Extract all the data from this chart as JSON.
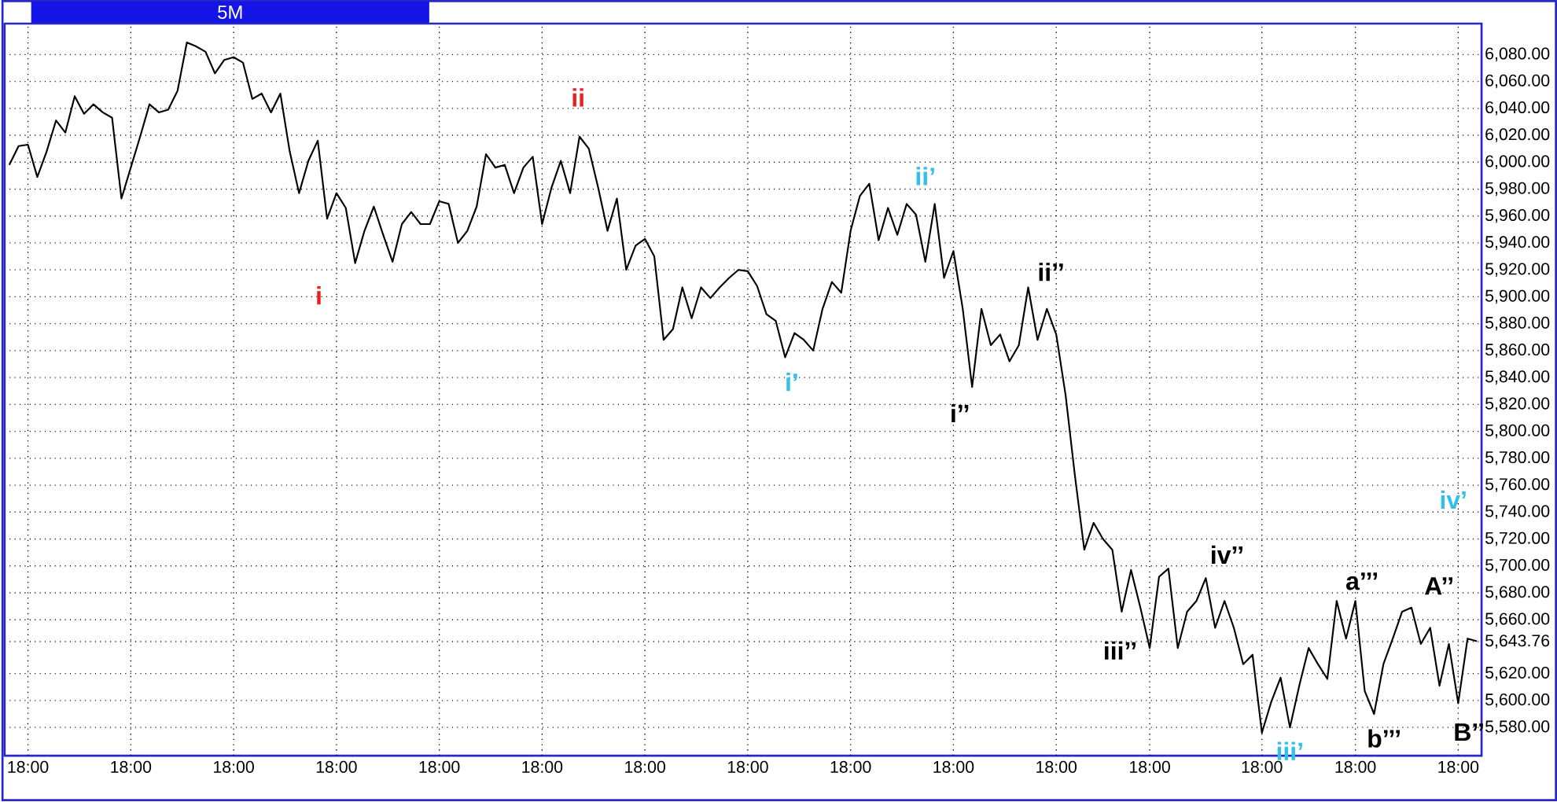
{
  "chart_data": {
    "type": "line",
    "title": "5M",
    "categories": [
      null,
      null,
      "18:00",
      null,
      null,
      null,
      null,
      null,
      null,
      null,
      null,
      null,
      null,
      "18:00",
      null,
      null,
      null,
      null,
      null,
      null,
      null,
      null,
      null,
      null,
      "18:00",
      null,
      null,
      null,
      null,
      null,
      null,
      null,
      null,
      null,
      null,
      "18:00",
      null,
      null,
      null,
      null,
      null,
      null,
      null,
      null,
      null,
      null,
      "18:00",
      null,
      null,
      null,
      null,
      null,
      null,
      null,
      null,
      null,
      null,
      "18:00",
      null,
      null,
      null,
      null,
      null,
      null,
      null,
      null,
      null,
      null,
      "18:00",
      null,
      null,
      null,
      null,
      null,
      null,
      null,
      null,
      null,
      null,
      "18:00",
      null,
      null,
      null,
      null,
      null,
      null,
      null,
      null,
      null,
      null,
      "18:00",
      null,
      null,
      null,
      null,
      null,
      null,
      null,
      null,
      null,
      null,
      "18:00",
      null,
      null,
      null,
      null,
      null,
      null,
      null,
      null,
      null,
      null,
      "18:00",
      null,
      null,
      null,
      null,
      null,
      null,
      null,
      null,
      null,
      "18:00",
      null,
      null,
      null,
      null,
      null,
      null,
      null,
      null,
      null,
      null,
      null,
      "18:00",
      null,
      null,
      null,
      null,
      null,
      null,
      null,
      null,
      null,
      "18:00",
      null,
      null,
      null,
      null,
      null,
      null,
      null,
      null,
      null,
      null,
      "18:00",
      null,
      null
    ],
    "series": [
      {
        "color": "#000000",
        "line_style": "solid",
        "values": [
          5998,
          6012,
          6013,
          5989,
          6008,
          6031,
          6022,
          6049,
          6036,
          6043,
          6037,
          6033,
          5973,
          5996,
          6019,
          6043,
          6037,
          6039,
          6053,
          6089,
          6086,
          6082,
          6066,
          6076,
          6078,
          6074,
          6047,
          6051,
          6037,
          6051,
          6008,
          5977,
          6001,
          6016,
          5958,
          5977,
          5966,
          5925,
          5949,
          5967,
          5946,
          5926,
          5954,
          5963,
          5954,
          5954,
          5971,
          5969,
          5940,
          5949,
          5967,
          6006,
          5996,
          5998,
          5977,
          5996,
          6004,
          5954,
          5981,
          6001,
          5977,
          6019,
          6010,
          5981,
          5949,
          5973,
          5920,
          5938,
          5943,
          5930,
          5868,
          5876,
          5907,
          5884,
          5907,
          5899,
          5907,
          5914,
          5920,
          5919,
          5908,
          5887,
          5882,
          5855,
          5873,
          5868,
          5860,
          5891,
          5911,
          5903,
          5949,
          5975,
          5984,
          5942,
          5966,
          5946,
          5969,
          5961,
          5926,
          5969,
          5914,
          5934,
          5891,
          5833,
          5891,
          5864,
          5872,
          5852,
          5864,
          5907,
          5868,
          5891,
          5872,
          5827,
          5767,
          5712,
          5732,
          5720,
          5712,
          5666,
          5697,
          5669,
          5639,
          5692,
          5698,
          5639,
          5666,
          5674,
          5691,
          5654,
          5674,
          5654,
          5627,
          5634,
          5576,
          5599,
          5617,
          5580,
          5611,
          5639,
          5627,
          5616,
          5674,
          5646,
          5674,
          5607,
          5590,
          5627,
          5646,
          5666,
          5669,
          5642,
          5654,
          5611,
          5642,
          5598,
          5646,
          5644
        ]
      }
    ],
    "ylim": [
      5559,
      6103
    ],
    "yticks": [
      {
        "value": 5580,
        "label": "5,580.00"
      },
      {
        "value": 5600,
        "label": "5,600.00"
      },
      {
        "value": 5620,
        "label": "5,620.00"
      },
      {
        "value": 5643.76,
        "label": "5,643.76"
      },
      {
        "value": 5660,
        "label": "5,660.00"
      },
      {
        "value": 5680,
        "label": "5,680.00"
      },
      {
        "value": 5700,
        "label": "5,700.00"
      },
      {
        "value": 5720,
        "label": "5,720.00"
      },
      {
        "value": 5740,
        "label": "5,740.00"
      },
      {
        "value": 5760,
        "label": "5,760.00"
      },
      {
        "value": 5780,
        "label": "5,780.00"
      },
      {
        "value": 5800,
        "label": "5,800.00"
      },
      {
        "value": 5820,
        "label": "5,820.00"
      },
      {
        "value": 5840,
        "label": "5,840.00"
      },
      {
        "value": 5860,
        "label": "5,860.00"
      },
      {
        "value": 5880,
        "label": "5,880.00"
      },
      {
        "value": 5900,
        "label": "5,900.00"
      },
      {
        "value": 5920,
        "label": "5,920.00"
      },
      {
        "value": 5940,
        "label": "5,940.00"
      },
      {
        "value": 5960,
        "label": "5,960.00"
      },
      {
        "value": 5980,
        "label": "5,980.00"
      },
      {
        "value": 6000,
        "label": "6,000.00"
      },
      {
        "value": 6020,
        "label": "6,020.00"
      },
      {
        "value": 6040,
        "label": "6,040.00"
      },
      {
        "value": 6060,
        "label": "6,060.00"
      },
      {
        "value": 6080,
        "label": "6,080.00"
      }
    ],
    "grid": true,
    "annotations": [
      "i",
      "ii",
      "i’",
      "ii’",
      "i’’",
      "ii’’",
      "iii’’",
      "iv’’",
      "iii’",
      "a’’’",
      "b’’’",
      "A’’",
      "B’’",
      "iv’"
    ]
  }
}
